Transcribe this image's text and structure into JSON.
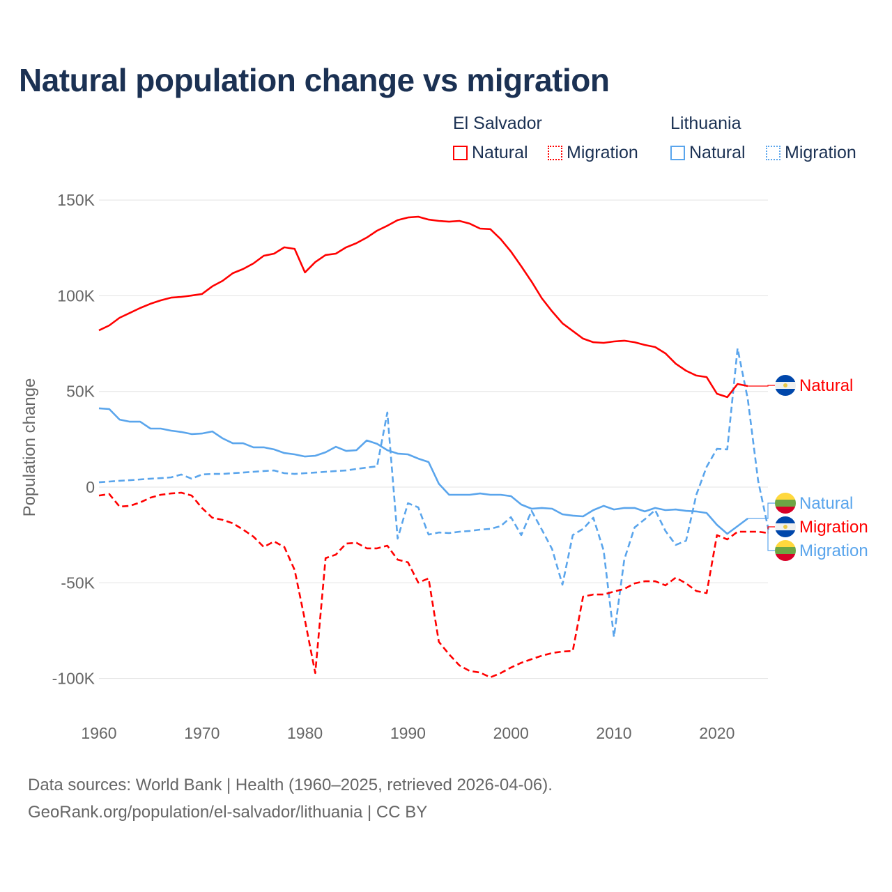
{
  "chart_data": {
    "type": "line",
    "title": "Natural population change vs migration",
    "xlabel": "",
    "ylabel": "Population change",
    "xlim": [
      1960,
      2025
    ],
    "ylim": [
      -100000,
      150000
    ],
    "x_ticks": [
      "1960",
      "1970",
      "1980",
      "1990",
      "2000",
      "2010",
      "2020"
    ],
    "y_ticks": [
      {
        "v": 150000,
        "label": "150K"
      },
      {
        "v": 100000,
        "label": "100K"
      },
      {
        "v": 50000,
        "label": "50K"
      },
      {
        "v": 0,
        "label": "0"
      },
      {
        "v": -50000,
        "label": "-50K"
      },
      {
        "v": -100000,
        "label": "-100K"
      }
    ],
    "grid": true,
    "legend": {
      "placement": "top-right",
      "groups": [
        {
          "country": "El Salvador",
          "items": [
            "Natural",
            "Migration"
          ]
        },
        {
          "country": "Lithuania",
          "items": [
            "Natural",
            "Migration"
          ]
        }
      ]
    },
    "colors": {
      "el_salvador": "#ff0000",
      "lithuania": "#5aa5ec"
    },
    "series": [
      {
        "name": "El Salvador Natural",
        "label": "Natural",
        "country": "el-salvador",
        "style": "solid",
        "color": "#ff0000",
        "start": 1960,
        "values": [
          81900,
          84500,
          88500,
          91000,
          93600,
          95800,
          97600,
          99000,
          99400,
          100100,
          100900,
          104900,
          107800,
          111800,
          114000,
          116900,
          120900,
          122000,
          125300,
          124500,
          112200,
          117600,
          121300,
          122000,
          125300,
          127500,
          130400,
          134000,
          136600,
          139500,
          140900,
          141300,
          139800,
          139100,
          138700,
          139100,
          137700,
          135100,
          134800,
          129600,
          123100,
          115400,
          107400,
          98700,
          91800,
          85600,
          81600,
          77600,
          75700,
          75400,
          76100,
          76500,
          75700,
          74300,
          73200,
          69900,
          64500,
          60800,
          58300,
          57500,
          48800,
          47000,
          53900,
          52800
        ]
      },
      {
        "name": "El Salvador Migration",
        "label": "Migration",
        "country": "el-salvador",
        "style": "dashed",
        "color": "#ff0000",
        "start": 1960,
        "values": [
          -4400,
          -3600,
          -10200,
          -9800,
          -8000,
          -5500,
          -4000,
          -3300,
          -2900,
          -4400,
          -10900,
          -16000,
          -17100,
          -18900,
          -22200,
          -25900,
          -31300,
          -28400,
          -31300,
          -43300,
          -69600,
          -97200,
          -37100,
          -35300,
          -29500,
          -29100,
          -32000,
          -32000,
          -30600,
          -37900,
          -39300,
          -49900,
          -47700,
          -80800,
          -87400,
          -93200,
          -96100,
          -96900,
          -99400,
          -97200,
          -94300,
          -91800,
          -89900,
          -88100,
          -86700,
          -85900,
          -85600,
          -57200,
          -56100,
          -56100,
          -54600,
          -53200,
          -50300,
          -49200,
          -49200,
          -51300,
          -47300,
          -50300,
          -54300,
          -55400,
          -25100,
          -27300,
          -23300,
          -23300,
          -23300,
          -24000
        ]
      },
      {
        "name": "Lithuania Natural",
        "label": "Natural",
        "country": "lithuania",
        "style": "solid",
        "color": "#5aa5ec",
        "start": 1960,
        "values": [
          41200,
          40800,
          35300,
          34200,
          34200,
          30600,
          30600,
          29500,
          28800,
          27700,
          28000,
          29100,
          25500,
          22900,
          22900,
          20800,
          20800,
          19700,
          17800,
          17100,
          16000,
          16400,
          18200,
          21100,
          18900,
          19300,
          24400,
          22600,
          19300,
          17500,
          17100,
          14900,
          13100,
          1800,
          -4000,
          -4000,
          -4000,
          -3300,
          -4000,
          -4000,
          -4700,
          -9100,
          -11300,
          -10900,
          -11300,
          -14200,
          -14900,
          -15300,
          -12000,
          -9800,
          -11700,
          -10900,
          -10900,
          -12700,
          -10900,
          -12000,
          -11700,
          -12400,
          -12700,
          -13500,
          -19700,
          -24400,
          -20400,
          -16400
        ]
      },
      {
        "name": "Lithuania Migration",
        "label": "Migration",
        "country": "lithuania",
        "style": "dashed",
        "color": "#5aa5ec",
        "start": 1960,
        "values": [
          2500,
          2900,
          3300,
          3600,
          4000,
          4400,
          4700,
          5100,
          6600,
          4400,
          6600,
          6900,
          6900,
          7300,
          7600,
          8000,
          8400,
          8700,
          7300,
          6900,
          7300,
          7600,
          8000,
          8400,
          8700,
          9500,
          10200,
          10900,
          39000,
          -26900,
          -8400,
          -10600,
          -24800,
          -23700,
          -24000,
          -23300,
          -22900,
          -22200,
          -21800,
          -20400,
          -15700,
          -25100,
          -12400,
          -22200,
          -32400,
          -51000,
          -25100,
          -21800,
          -16000,
          -33100,
          -78300,
          -37900,
          -21100,
          -16800,
          -12000,
          -22900,
          -30200,
          -28000,
          -4000,
          10600,
          20000,
          19700,
          72500,
          45900,
          3300,
          -22200
        ]
      }
    ]
  },
  "footer": {
    "line1": "Data sources: World Bank | Health (1960–2025, retrieved 2026-04-06).",
    "line2": "GeoRank.org/population/el-salvador/lithuania | CC BY"
  }
}
